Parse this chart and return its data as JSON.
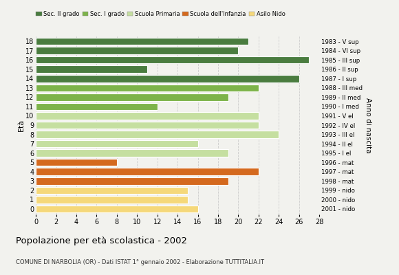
{
  "ages": [
    18,
    17,
    16,
    15,
    14,
    13,
    12,
    11,
    10,
    9,
    8,
    7,
    6,
    5,
    4,
    3,
    2,
    1,
    0
  ],
  "values": [
    21,
    20,
    27,
    11,
    26,
    22,
    19,
    12,
    22,
    22,
    24,
    16,
    19,
    8,
    22,
    19,
    15,
    15,
    16
  ],
  "colors": [
    "#4a7c3f",
    "#4a7c3f",
    "#4a7c3f",
    "#4a7c3f",
    "#4a7c3f",
    "#7db34a",
    "#7db34a",
    "#7db34a",
    "#c5dfa0",
    "#c5dfa0",
    "#c5dfa0",
    "#c5dfa0",
    "#c5dfa0",
    "#d4691e",
    "#d4691e",
    "#d4691e",
    "#f5d87a",
    "#f5d87a",
    "#f5d87a"
  ],
  "right_labels": [
    "1983 - V sup",
    "1984 - VI sup",
    "1985 - III sup",
    "1986 - II sup",
    "1987 - I sup",
    "1988 - III med",
    "1989 - II med",
    "1990 - I med",
    "1991 - V el",
    "1992 - IV el",
    "1993 - III el",
    "1994 - II el",
    "1995 - I el",
    "1996 - mat",
    "1997 - mat",
    "1998 - mat",
    "1999 - nido",
    "2000 - nido",
    "2001 - nido"
  ],
  "legend_labels": [
    "Sec. II grado",
    "Sec. I grado",
    "Scuola Primaria",
    "Scuola dell'Infanzia",
    "Asilo Nido"
  ],
  "legend_colors": [
    "#4a7c3f",
    "#7db34a",
    "#c5dfa0",
    "#d4691e",
    "#f5d87a"
  ],
  "ylabel_left": "Età",
  "ylabel_right": "Anno di nascita",
  "xlim": [
    0,
    28
  ],
  "xticks": [
    0,
    2,
    4,
    6,
    8,
    10,
    12,
    14,
    16,
    18,
    20,
    22,
    24,
    26,
    28
  ],
  "title": "Popolazione per età scolastica - 2002",
  "subtitle": "COMUNE DI NARBOLIA (OR) - Dati ISTAT 1° gennaio 2002 - Elaborazione TUTTITALIA.IT",
  "bg_color": "#f2f2ee",
  "bar_height": 0.78
}
